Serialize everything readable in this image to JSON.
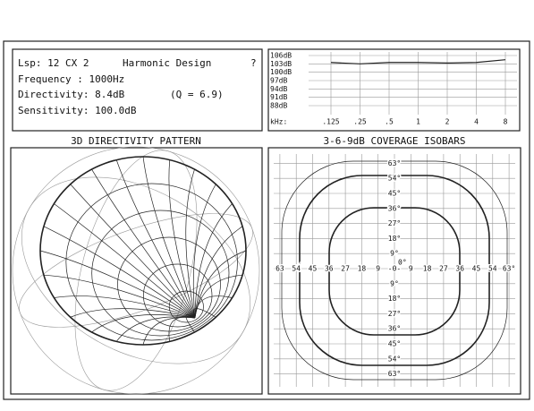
{
  "info": {
    "speaker": "Lsp: 12 CX 2",
    "design": "Harmonic Design",
    "help": "?",
    "frequency": "Frequency  :  1000Hz",
    "directivity": "Directivity:   8.4dB",
    "q": "(Q = 6.9)",
    "sensitivity": "Sensitivity: 100.0dB"
  },
  "response": {
    "ylim": [
      88,
      106
    ],
    "yticks": [
      {
        "value": 106,
        "label": "106dB"
      },
      {
        "value": 103,
        "label": "103dB"
      },
      {
        "value": 100,
        "label": "100dB"
      },
      {
        "value": 97,
        "label": "97dB"
      },
      {
        "value": 94,
        "label": "94dB"
      },
      {
        "value": 91,
        "label": "91dB"
      },
      {
        "value": 88,
        "label": "88dB"
      }
    ],
    "x_label": "kHz:",
    "categories": [
      ".125",
      ".25",
      ".5",
      "1",
      "2",
      "4",
      "8"
    ],
    "values": [
      103.5,
      103,
      103.5,
      103.5,
      103.3,
      103.5,
      104.5
    ]
  },
  "directivity": {
    "title": "3D DIRECTIVITY PATTERN"
  },
  "coverage": {
    "title": "3-6-9dB COVERAGE ISOBARS",
    "vertical_ticks": [
      "63°",
      "54°",
      "45°",
      "36°",
      "27°",
      "18°",
      "9°",
      "0°",
      "9°",
      "18°",
      "27°",
      "36°",
      "45°",
      "54°",
      "63°"
    ],
    "horizontal_ticks": [
      "63",
      "54",
      "45",
      "36",
      "27",
      "18",
      "9",
      "-0-",
      "9",
      "18",
      "27",
      "36",
      "45",
      "54",
      "63°"
    ]
  }
}
